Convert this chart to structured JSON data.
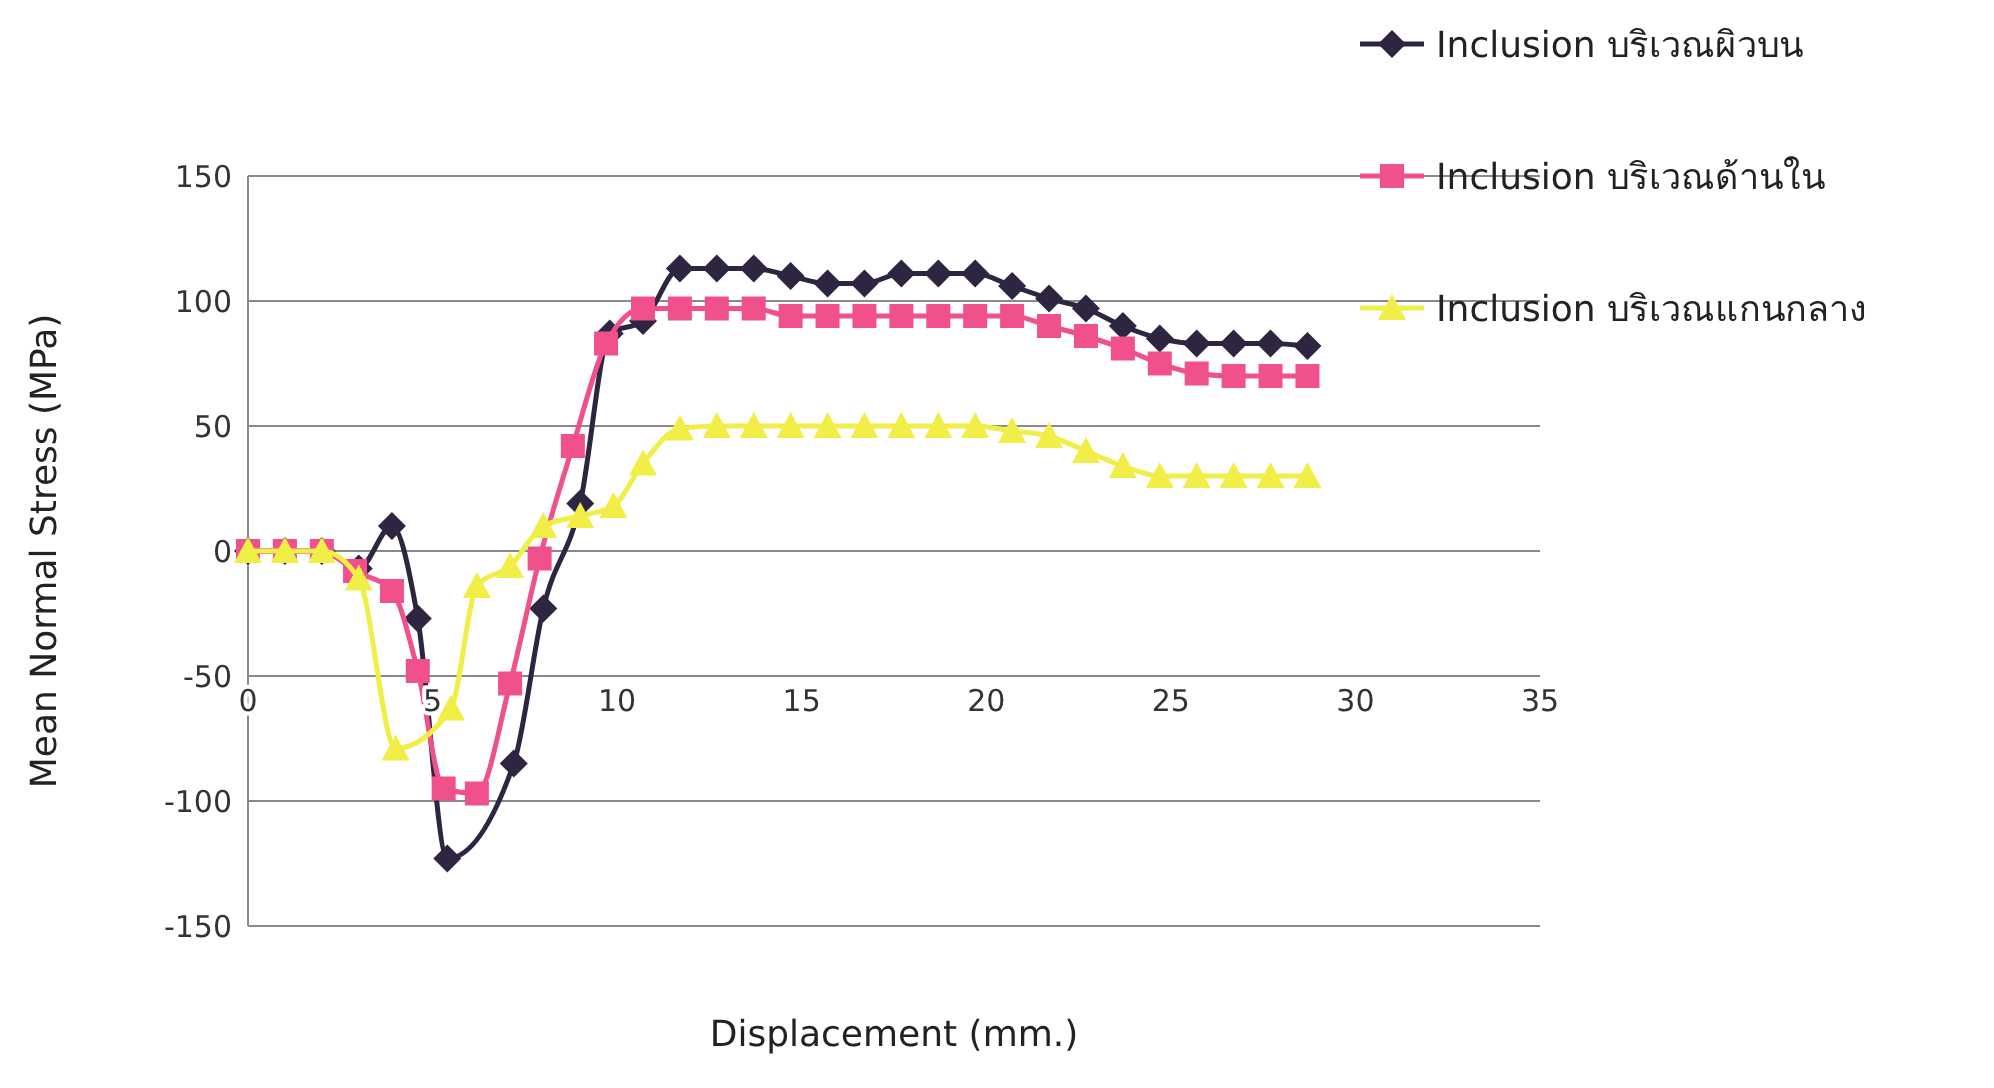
{
  "chart_data": {
    "type": "line",
    "xlabel": "Displacement (mm.)",
    "ylabel": "Mean Normal Stress (MPa)",
    "xlim": [
      0,
      35
    ],
    "xticks": [
      0,
      5,
      10,
      15,
      20,
      25,
      30,
      35
    ],
    "ylim": [
      -150,
      150
    ],
    "yticks": [
      -150,
      -100,
      -50,
      0,
      50,
      100,
      150
    ],
    "grid": "y",
    "legend": "top right",
    "series": [
      {
        "name": "Inclusion บริเวณผิวบน",
        "color": "#2e2640",
        "marker": "diamond",
        "x": [
          0,
          1,
          2,
          3,
          3.9,
          4.6,
          5.4,
          7.2,
          8,
          9,
          9.8,
          10.7,
          11.7,
          12.7,
          13.7,
          14.7,
          15.7,
          16.7,
          17.7,
          18.7,
          19.7,
          20.7,
          21.7,
          22.7,
          23.7,
          24.7,
          25.7,
          26.7,
          27.7,
          28.7
        ],
        "values": [
          0,
          0,
          0,
          -7,
          10,
          -27,
          -123,
          -85,
          -23,
          19,
          87,
          92,
          113,
          113,
          113,
          110,
          107,
          107,
          111,
          111,
          111,
          106,
          101,
          97,
          90,
          85,
          83,
          83,
          83,
          82
        ]
      },
      {
        "name": "Inclusion บริเวณด้านใน",
        "color": "#f0508c",
        "marker": "square",
        "x": [
          0,
          1,
          2,
          2.9,
          3.9,
          4.6,
          5.3,
          6.2,
          7.1,
          7.9,
          8.8,
          9.7,
          10.7,
          11.7,
          12.7,
          13.7,
          14.7,
          15.7,
          16.7,
          17.7,
          18.7,
          19.7,
          20.7,
          21.7,
          22.7,
          23.7,
          24.7,
          25.7,
          26.7,
          27.7,
          28.7
        ],
        "values": [
          0,
          0,
          0,
          -8,
          -16,
          -48,
          -95,
          -97,
          -53,
          -3,
          42,
          83,
          97,
          97,
          97,
          97,
          94,
          94,
          94,
          94,
          94,
          94,
          94,
          90,
          86,
          81,
          75,
          71,
          70,
          70,
          70
        ]
      },
      {
        "name": "Inclusion บริเวณแกนกลาง",
        "color": "#f2ee48",
        "marker": "triangle",
        "x": [
          0,
          1,
          2,
          3,
          4,
          5.5,
          6.2,
          7.1,
          8,
          9,
          9.9,
          10.7,
          11.7,
          12.7,
          13.7,
          14.7,
          15.7,
          16.7,
          17.7,
          18.7,
          19.7,
          20.7,
          21.7,
          22.7,
          23.7,
          24.7,
          25.7,
          26.7,
          27.7,
          28.7
        ],
        "values": [
          0,
          0,
          0,
          -11,
          -79,
          -63,
          -14,
          -6,
          10,
          14,
          18,
          35,
          49,
          50,
          50,
          50,
          50,
          50,
          50,
          50,
          50,
          48,
          46,
          40,
          34,
          30,
          30,
          30,
          30,
          30
        ]
      }
    ]
  }
}
